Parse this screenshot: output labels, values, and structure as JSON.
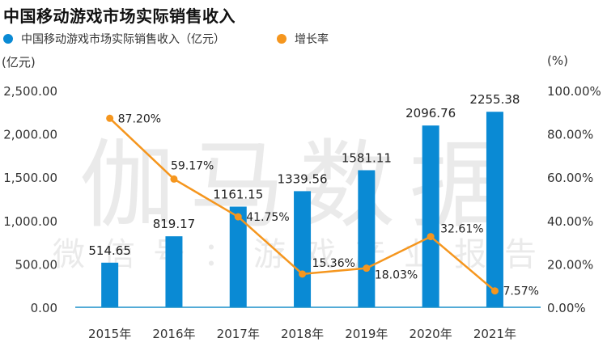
{
  "chart_data": {
    "type": "bar+line",
    "title": "中国移动游戏市场实际销售收入",
    "categories": [
      "2015年",
      "2016年",
      "2017年",
      "2018年",
      "2019年",
      "2020年",
      "2021年"
    ],
    "series": [
      {
        "name": "中国移动游戏市场实际销售收入（亿元）",
        "type": "bar",
        "axis": "left",
        "color": "#0a8ad4",
        "values": [
          514.65,
          819.17,
          1161.15,
          1339.56,
          1581.11,
          2096.76,
          2255.38
        ],
        "labels": [
          "514.65",
          "819.17",
          "1161.15",
          "1339.56",
          "1581.11",
          "2096.76",
          "2255.38"
        ]
      },
      {
        "name": "增长率",
        "type": "line",
        "axis": "right",
        "color": "#f5961e",
        "values": [
          87.2,
          59.17,
          41.75,
          15.36,
          18.03,
          32.61,
          7.57
        ],
        "labels": [
          "87.20%",
          "59.17%",
          "41.75%",
          "15.36%",
          "18.03%",
          "32.61%",
          "7.57%"
        ]
      }
    ],
    "left_axis": {
      "label": "(亿元)",
      "ylim": [
        0,
        2500
      ],
      "ticks": [
        0,
        500,
        1000,
        1500,
        2000,
        2500
      ],
      "tick_labels": [
        "0.00",
        "500.00",
        "1,000.00",
        "1,500.00",
        "2,000.00",
        "2,500.00"
      ]
    },
    "right_axis": {
      "label": "(%)",
      "ylim": [
        0,
        100
      ],
      "ticks": [
        0,
        20,
        40,
        60,
        80,
        100
      ],
      "tick_labels": [
        "0.00%",
        "20.00%",
        "40.00%",
        "60.00%",
        "80.00%",
        "100.00%"
      ]
    },
    "legend_position": "top-left",
    "grid": false,
    "axis_color": "#1a8fc9"
  },
  "watermark": {
    "main": "伽马数据",
    "sub": "微信号：游戏产业报告"
  }
}
